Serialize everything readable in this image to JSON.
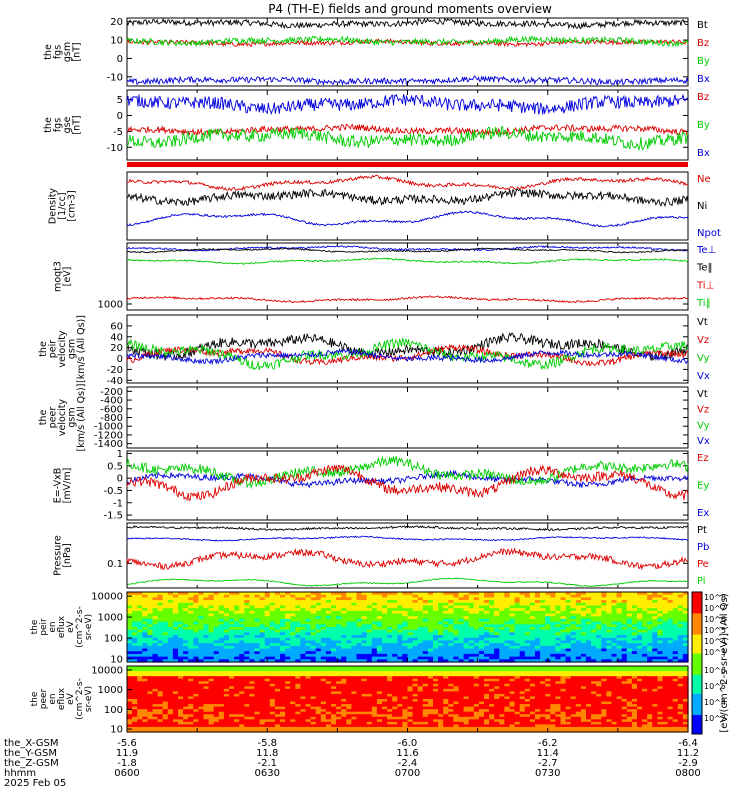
{
  "chart_data": {
    "type": "line",
    "title": "P4 (TH-E) fields and ground moments overview",
    "panels": [
      {
        "id": "fgs-gsm",
        "ylabel_lines": [
          "the",
          "fgs",
          "gsm",
          "[nT]"
        ],
        "yticks": [
          20,
          10,
          0,
          -10
        ],
        "ylim": [
          -15,
          22
        ],
        "series": [
          {
            "name": "Bt",
            "color": "#000000",
            "level": 19,
            "noise": 1.6,
            "wave": 0.8
          },
          {
            "name": "Bz",
            "color": "#dd0000",
            "level": 8.5,
            "noise": 1.2,
            "wave": 0.6
          },
          {
            "name": "By",
            "color": "#00cc00",
            "level": 9.5,
            "noise": 1.6,
            "wave": 0.8
          },
          {
            "name": "Bx",
            "color": "#0000dd",
            "level": -12,
            "noise": 1.6,
            "wave": 0.6
          }
        ],
        "legend": [
          "Bt",
          "Bz",
          "By",
          "Bx"
        ]
      },
      {
        "id": "fgs-gse",
        "ylabel_lines": [
          "the",
          "fgs",
          "gse",
          "[nT]"
        ],
        "yticks": [
          5,
          0,
          -5,
          -10
        ],
        "ylim": [
          -14,
          8
        ],
        "series": [
          {
            "name": "Bx",
            "color": "#0000dd",
            "level": 3.5,
            "noise": 2.0,
            "wave": 1.0
          },
          {
            "name": "Bz",
            "color": "#dd0000",
            "level": -4.5,
            "noise": 1.0,
            "wave": 0.6
          },
          {
            "name": "By",
            "color": "#00cc00",
            "level": -7,
            "noise": 2.0,
            "wave": 1.2
          }
        ],
        "legend": [
          "Bz",
          "By",
          "Bx"
        ]
      },
      {
        "id": "density",
        "ylabel_lines": [
          "Density",
          "[1/cc]",
          "[cm-3]"
        ],
        "yticks": [],
        "ylim": [
          0,
          10
        ],
        "series": [
          {
            "name": "Ne",
            "color": "#dd0000",
            "level": 8.4,
            "noise": 0.25,
            "wave": 0.6
          },
          {
            "name": "Ni",
            "color": "#000000",
            "level": 6.3,
            "noise": 0.6,
            "wave": 0.5
          },
          {
            "name": "Npot",
            "color": "#0000dd",
            "level": 3.1,
            "noise": 0.15,
            "wave": 0.7
          }
        ],
        "legend": [
          "Ne",
          "Ni",
          "Npot"
        ]
      },
      {
        "id": "temperature",
        "ylabel_lines": [
          "moqt3",
          "[eV]"
        ],
        "yticks": [
          1000
        ],
        "ylim": [
          0,
          10
        ],
        "series": [
          {
            "name": "Te⊥",
            "color": "#0000dd",
            "level": 9.2,
            "noise": 0.12,
            "wave": 0.2
          },
          {
            "name": "Te‖",
            "color": "#000000",
            "level": 8.9,
            "noise": 0.1,
            "wave": 0.2
          },
          {
            "name": "Ti⊥",
            "color": "#dd0000",
            "level": 1.6,
            "noise": 0.15,
            "wave": 0.25
          },
          {
            "name": "Ti‖",
            "color": "#00cc00",
            "level": 7.3,
            "noise": 0.12,
            "wave": 0.25
          }
        ],
        "legend": [
          "Te⊥",
          "Te‖",
          "Ti⊥",
          "Ti‖"
        ]
      },
      {
        "id": "peir-velocity",
        "ylabel_lines": [
          "the",
          "peir",
          "velocity",
          "gsm",
          "[km/s (All Qs)]"
        ],
        "yticks": [
          60,
          40,
          20,
          0,
          -20,
          -40
        ],
        "ylim": [
          -45,
          80
        ],
        "series": [
          {
            "name": "Vt",
            "color": "#000000",
            "level": 22,
            "noise": 9,
            "wave": 12
          },
          {
            "name": "Vz",
            "color": "#dd0000",
            "level": 6,
            "noise": 6,
            "wave": 10
          },
          {
            "name": "Vy",
            "color": "#00cc00",
            "level": 8,
            "noise": 9,
            "wave": 14
          },
          {
            "name": "Vx",
            "color": "#0000dd",
            "level": 4,
            "noise": 5,
            "wave": 6
          }
        ],
        "legend": [
          "Vt",
          "Vz",
          "Vy",
          "Vx"
        ]
      },
      {
        "id": "peer-velocity",
        "ylabel_lines": [
          "the",
          "peer",
          "velocity",
          "gsm",
          "[km/s (All Qs)]"
        ],
        "yticks": [
          -200,
          -400,
          -600,
          -800,
          -1000,
          -1200,
          -1400
        ],
        "ylim": [
          -1500,
          -100
        ],
        "series": [],
        "legend": [
          "Vt",
          "Vz",
          "Vy",
          "Vx"
        ]
      },
      {
        "id": "efield",
        "ylabel_lines": [
          "E=-VxB",
          "[mV/m]"
        ],
        "yticks": [
          1.0,
          0.5,
          0.0,
          -0.5,
          -1.0,
          -1.5
        ],
        "ylim": [
          -1.7,
          1.1
        ],
        "series": [
          {
            "name": "Ex",
            "color": "#0000dd",
            "level": -0.05,
            "noise": 0.12,
            "wave": 0.15
          },
          {
            "name": "Ey",
            "color": "#00cc00",
            "level": 0.25,
            "noise": 0.2,
            "wave": 0.3
          },
          {
            "name": "Ez",
            "color": "#dd0000",
            "level": -0.15,
            "noise": 0.2,
            "wave": 0.4
          }
        ],
        "legend": [
          "Ez",
          "Ey",
          "Ex"
        ]
      },
      {
        "id": "pressure",
        "ylabel_lines": [
          "Pressure",
          "[nPa]"
        ],
        "yticks": [
          0.1
        ],
        "ylim": [
          0,
          10
        ],
        "series": [
          {
            "name": "Pt",
            "color": "#000000",
            "level": 9.2,
            "noise": 0.15,
            "wave": 0.15
          },
          {
            "name": "Pb",
            "color": "#0000dd",
            "level": 7.6,
            "noise": 0.1,
            "wave": 0.2
          },
          {
            "name": "Pe",
            "color": "#dd0000",
            "level": 4.5,
            "noise": 0.5,
            "wave": 0.8
          },
          {
            "name": "Pi",
            "color": "#00cc00",
            "level": 0.9,
            "noise": 0.08,
            "wave": 0.4
          }
        ],
        "legend": [
          "Pt",
          "Pb",
          "Pe",
          "Pi"
        ]
      }
    ],
    "spectrograms": [
      {
        "id": "peir-eflux",
        "ylabel_lines": [
          "the",
          "peir",
          "en",
          "eflux",
          "eV",
          "(cm^2-s-",
          "sr-eV)"
        ],
        "yticks": [
          10000,
          1000,
          100,
          10
        ],
        "ylim_log": [
          0.85,
          4.2
        ]
      },
      {
        "id": "peer-eflux",
        "ylabel_lines": [
          "the",
          "peer",
          "en",
          "eflux",
          "eV",
          "(cm^2-s-",
          "sr-eV)"
        ],
        "yticks": [
          10000,
          1000,
          100,
          10
        ],
        "ylim_log": [
          0.85,
          4.2
        ]
      }
    ],
    "colorbar": {
      "ticks": [
        "10^8",
        "10^7",
        "10^6",
        "10^5",
        "10^4",
        "10^3"
      ],
      "ticks_lower": [
        "10^6",
        "10^5",
        "10^4",
        "10^2"
      ],
      "label": "[eV/(cm^2-s-sr-eV)] (All Qs)",
      "colors": [
        "#0000ff",
        "#00aaff",
        "#00ffaa",
        "#66ff00",
        "#ffee00",
        "#ff8800",
        "#ff0000"
      ]
    },
    "x_axis": {
      "rows": [
        {
          "label": "the_X-GSM",
          "values": [
            "-5.6",
            "-5.8",
            "-6.0",
            "-6.2",
            "-6.4"
          ]
        },
        {
          "label": "the_Y-GSM",
          "values": [
            "11.9",
            "11.8",
            "11.6",
            "11.4",
            "11.2"
          ]
        },
        {
          "label": "the_Z-GSM",
          "values": [
            "-1.8",
            "-2.1",
            "-2.4",
            "-2.7",
            "-2.9"
          ]
        },
        {
          "label": "hhmm",
          "values": [
            "0600",
            "0630",
            "0700",
            "0730",
            "0800"
          ]
        }
      ],
      "date": "2025 Feb 05"
    }
  }
}
